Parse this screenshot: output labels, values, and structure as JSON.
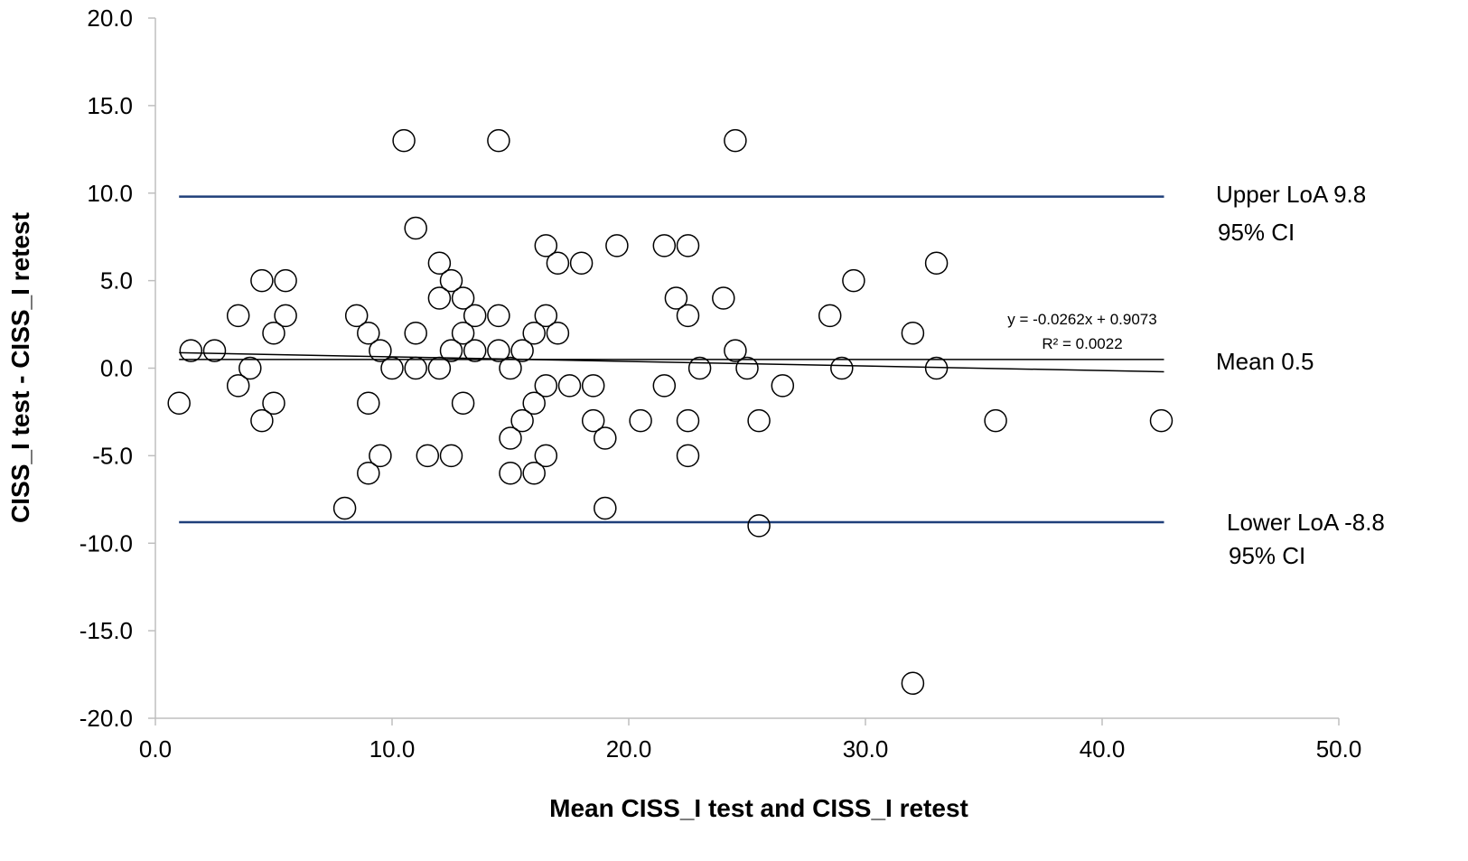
{
  "chart_data": {
    "type": "scatter",
    "xlabel": "Mean CISS_I  test and CISS_I retest",
    "ylabel": "CISS_I test - CISS_I retest",
    "xlim": [
      0,
      50
    ],
    "ylim": [
      -20,
      20
    ],
    "xticks": [
      "0.0",
      "10.0",
      "20.0",
      "30.0",
      "40.0",
      "50.0"
    ],
    "yticks": [
      "-20.0",
      "-15.0",
      "-10.0",
      "-5.0",
      "0.0",
      "5.0",
      "10.0",
      "15.0",
      "20.0"
    ],
    "grid": false,
    "marker": "open-circle",
    "colors": {
      "points": "#000000",
      "loa_lines": "#1f3f7a",
      "mean_line": "#000000",
      "trend_line": "#000000"
    },
    "points": [
      [
        1,
        -2
      ],
      [
        1.5,
        1
      ],
      [
        2.5,
        1
      ],
      [
        3.5,
        3
      ],
      [
        3.5,
        -1
      ],
      [
        4,
        0
      ],
      [
        4.5,
        5
      ],
      [
        4.5,
        -3
      ],
      [
        5,
        2
      ],
      [
        5,
        -2
      ],
      [
        5.5,
        5
      ],
      [
        5.5,
        3
      ],
      [
        8,
        -8
      ],
      [
        8.5,
        3
      ],
      [
        9,
        2
      ],
      [
        9,
        -2
      ],
      [
        9,
        -6
      ],
      [
        9.5,
        1
      ],
      [
        9.5,
        -5
      ],
      [
        10,
        0
      ],
      [
        10.5,
        13
      ],
      [
        11,
        8
      ],
      [
        11,
        2
      ],
      [
        11,
        0
      ],
      [
        11.5,
        -5
      ],
      [
        12,
        6
      ],
      [
        12,
        4
      ],
      [
        12,
        0
      ],
      [
        12.5,
        5
      ],
      [
        12.5,
        1
      ],
      [
        12.5,
        -5
      ],
      [
        13,
        4
      ],
      [
        13,
        2
      ],
      [
        13,
        -2
      ],
      [
        13.5,
        3
      ],
      [
        13.5,
        1
      ],
      [
        14.5,
        13
      ],
      [
        14.5,
        3
      ],
      [
        14.5,
        1
      ],
      [
        15,
        0
      ],
      [
        15,
        -4
      ],
      [
        15,
        -6
      ],
      [
        15.5,
        1
      ],
      [
        15.5,
        -3
      ],
      [
        16,
        2
      ],
      [
        16,
        -2
      ],
      [
        16,
        -6
      ],
      [
        16.5,
        7
      ],
      [
        16.5,
        3
      ],
      [
        16.5,
        -1
      ],
      [
        16.5,
        -5
      ],
      [
        17,
        6
      ],
      [
        17,
        2
      ],
      [
        17.5,
        -1
      ],
      [
        18,
        6
      ],
      [
        18.5,
        -1
      ],
      [
        18.5,
        -3
      ],
      [
        19,
        -4
      ],
      [
        19,
        -8
      ],
      [
        19.5,
        7
      ],
      [
        20.5,
        -3
      ],
      [
        21.5,
        7
      ],
      [
        21.5,
        -1
      ],
      [
        22,
        4
      ],
      [
        22.5,
        7
      ],
      [
        22.5,
        3
      ],
      [
        22.5,
        -3
      ],
      [
        22.5,
        -5
      ],
      [
        23,
        0
      ],
      [
        24,
        4
      ],
      [
        24.5,
        13
      ],
      [
        24.5,
        1
      ],
      [
        25,
        0
      ],
      [
        25.5,
        -3
      ],
      [
        25.5,
        -9
      ],
      [
        26.5,
        -1
      ],
      [
        28.5,
        3
      ],
      [
        29,
        0
      ],
      [
        29.5,
        5
      ],
      [
        32,
        2
      ],
      [
        32,
        -18
      ],
      [
        33,
        6
      ],
      [
        33,
        0
      ],
      [
        35.5,
        -3
      ],
      [
        42.5,
        -3
      ]
    ],
    "reference_lines": [
      {
        "name": "upper_loa",
        "y": 9.8,
        "label": "Upper LoA 9.8",
        "sublabel": "95% CI"
      },
      {
        "name": "mean",
        "y": 0.5,
        "label": "Mean 0.5"
      },
      {
        "name": "lower_loa",
        "y": -8.8,
        "label": "Lower LoA -8.8",
        "sublabel": "95% CI"
      }
    ],
    "reference_line_xrange": [
      1,
      42.5
    ],
    "trendline": {
      "slope": -0.0262,
      "intercept": 0.9073,
      "equation": "y = -0.0262x + 0.9073",
      "r2": "R² = 0.0022"
    }
  }
}
